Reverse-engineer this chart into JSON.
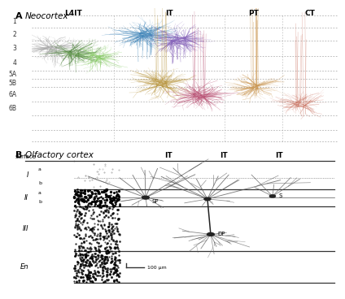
{
  "title_A": "A  Neocortex",
  "title_B": "B  Olfactory cortex",
  "panel_A_headers": [
    "L4IT",
    "IT",
    "PT",
    "CT"
  ],
  "layer_labels": [
    "1",
    "2",
    "3",
    "4",
    "5A",
    "5B",
    "6A",
    "6B"
  ],
  "bg_color": "#ffffff",
  "neuron_colors": {
    "L4IT_gray1": "#aaaaaa",
    "L4IT_gray2": "#888888",
    "L4IT_green1": "#558844",
    "L4IT_green2": "#88cc66",
    "IT_blue": "#4488bb",
    "IT_purple": "#8866bb",
    "IT_gold": "#bb9944",
    "IT_pink": "#bb5577",
    "PT_tan": "#cc9955",
    "CT_salmon": "#cc7766"
  },
  "scale_bar_text": "100 μm"
}
